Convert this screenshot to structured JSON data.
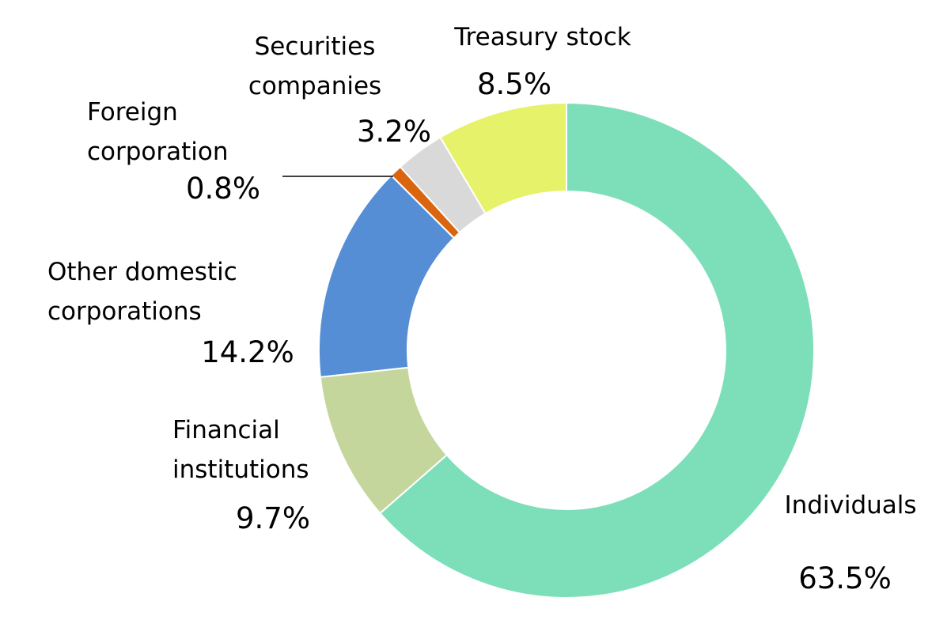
{
  "chart_data": {
    "type": "donut",
    "categories": [
      "Individuals",
      "Financial\ninstitutions",
      "Other domestic\ncorporations",
      "Foreign\ncorporation",
      "Securities\ncompanies",
      "Treasury stock"
    ],
    "values": [
      63.5,
      9.7,
      14.2,
      0.8,
      3.2,
      8.5
    ],
    "value_labels": [
      "63.5%",
      "9.7%",
      "14.2%",
      "0.8%",
      "3.2%",
      "8.5%"
    ],
    "colors": [
      "#7ddfb9",
      "#c5d69c",
      "#558ed5",
      "#d9650f",
      "#d9d9d9",
      "#e6f26a"
    ]
  }
}
